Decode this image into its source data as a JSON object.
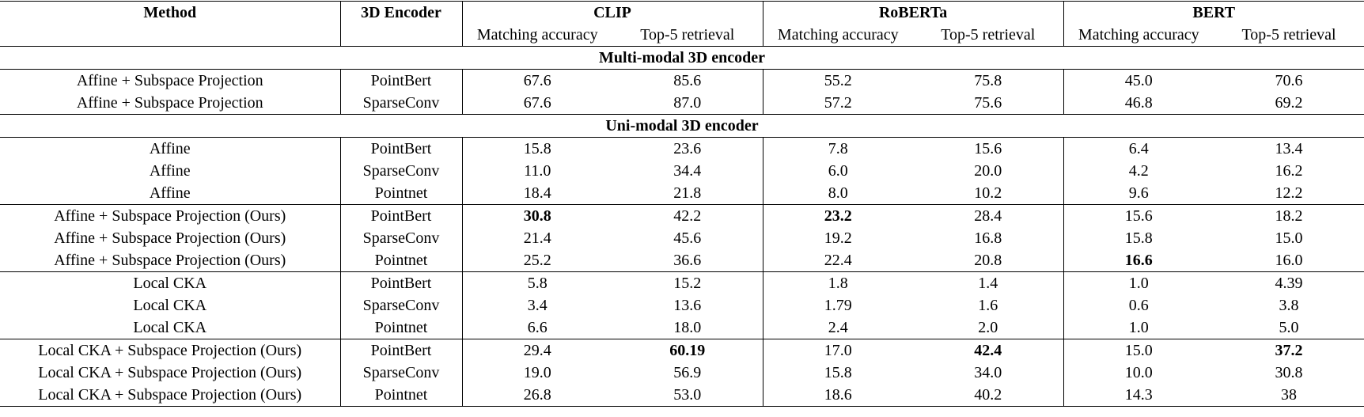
{
  "table": {
    "header": {
      "method": "Method",
      "encoder": "3D Encoder",
      "groups": [
        "CLIP",
        "RoBERTa",
        "BERT"
      ],
      "subheaders": [
        "Matching accuracy",
        "Top-5 retrieval",
        "Matching accuracy",
        "Top-5 retrieval",
        "Matching accuracy",
        "Top-5 retrieval"
      ]
    },
    "sections": [
      {
        "title": "Multi-modal 3D encoder",
        "blocks": [
          [
            {
              "method": "Affine + Subspace Projection",
              "encoder": "PointBert",
              "values": [
                "67.6",
                "85.6",
                "55.2",
                "75.8",
                "45.0",
                "70.6"
              ],
              "bold": []
            },
            {
              "method": "Affine + Subspace Projection",
              "encoder": "SparseConv",
              "values": [
                "67.6",
                "87.0",
                "57.2",
                "75.6",
                "46.8",
                "69.2"
              ],
              "bold": []
            }
          ]
        ]
      },
      {
        "title": "Uni-modal 3D encoder",
        "blocks": [
          [
            {
              "method": "Affine",
              "encoder": "PointBert",
              "values": [
                "15.8",
                "23.6",
                "7.8",
                "15.6",
                "6.4",
                "13.4"
              ],
              "bold": []
            },
            {
              "method": "Affine",
              "encoder": "SparseConv",
              "values": [
                "11.0",
                "34.4",
                "6.0",
                "20.0",
                "4.2",
                "16.2"
              ],
              "bold": []
            },
            {
              "method": "Affine",
              "encoder": "Pointnet",
              "values": [
                "18.4",
                "21.8",
                "8.0",
                "10.2",
                "9.6",
                "12.2"
              ],
              "bold": []
            }
          ],
          [
            {
              "method": "Affine + Subspace Projection (Ours)",
              "encoder": "PointBert",
              "values": [
                "30.8",
                "42.2",
                "23.2",
                "28.4",
                "15.6",
                "18.2"
              ],
              "bold": [
                0,
                2
              ]
            },
            {
              "method": "Affine + Subspace Projection (Ours)",
              "encoder": "SparseConv",
              "values": [
                "21.4",
                "45.6",
                "19.2",
                "16.8",
                "15.8",
                "15.0"
              ],
              "bold": []
            },
            {
              "method": "Affine + Subspace Projection (Ours)",
              "encoder": "Pointnet",
              "values": [
                "25.2",
                "36.6",
                "22.4",
                "20.8",
                "16.6",
                "16.0"
              ],
              "bold": [
                4
              ]
            }
          ],
          [
            {
              "method": "Local CKA",
              "encoder": "PointBert",
              "values": [
                "5.8",
                "15.2",
                "1.8",
                "1.4",
                "1.0",
                "4.39"
              ],
              "bold": []
            },
            {
              "method": "Local CKA",
              "encoder": "SparseConv",
              "values": [
                "3.4",
                "13.6",
                "1.79",
                "1.6",
                "0.6",
                "3.8"
              ],
              "bold": []
            },
            {
              "method": "Local CKA",
              "encoder": "Pointnet",
              "values": [
                "6.6",
                "18.0",
                "2.4",
                "2.0",
                "1.0",
                "5.0"
              ],
              "bold": []
            }
          ],
          [
            {
              "method": "Local CKA + Subspace Projection (Ours)",
              "encoder": "PointBert",
              "values": [
                "29.4",
                "60.19",
                "17.0",
                "42.4",
                "15.0",
                "37.2"
              ],
              "bold": [
                1,
                3,
                5
              ]
            },
            {
              "method": "Local CKA + Subspace Projection (Ours)",
              "encoder": "SparseConv",
              "values": [
                "19.0",
                "56.9",
                "15.8",
                "34.0",
                "10.0",
                "30.8"
              ],
              "bold": []
            },
            {
              "method": "Local CKA + Subspace Projection (Ours)",
              "encoder": "Pointnet",
              "values": [
                "26.8",
                "53.0",
                "18.6",
                "40.2",
                "14.3",
                "38"
              ],
              "bold": []
            }
          ]
        ]
      }
    ]
  }
}
